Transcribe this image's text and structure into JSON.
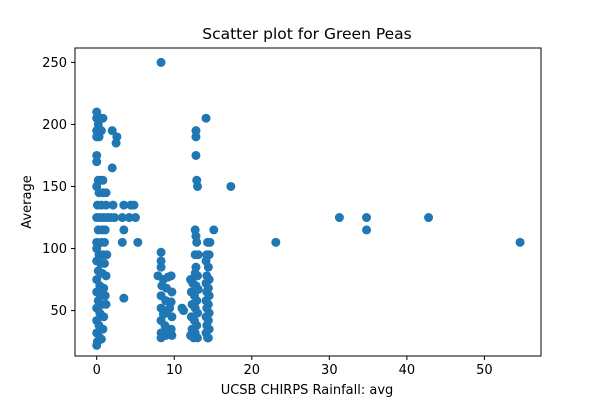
{
  "chart_data": {
    "type": "scatter",
    "title": "Scatter plot for Green Peas",
    "xlabel": "UCSB CHIRPS Rainfall: avg",
    "ylabel": "Average",
    "xlim": [
      -2.8,
      57.3
    ],
    "ylim": [
      13.4,
      261.6
    ],
    "xticks": [
      0,
      10,
      20,
      30,
      40,
      50
    ],
    "yticks": [
      50,
      100,
      150,
      200,
      250
    ],
    "grid": false,
    "marker_color": "#1f77b4",
    "series": [
      {
        "points": [
          [
            0,
            210
          ],
          [
            0,
            205
          ],
          [
            0.2,
            200
          ],
          [
            0,
            195
          ],
          [
            0.3,
            190
          ],
          [
            0,
            190
          ],
          [
            0.5,
            205
          ],
          [
            0.8,
            205
          ],
          [
            0.6,
            195
          ],
          [
            0,
            175
          ],
          [
            0,
            170
          ],
          [
            0.2,
            155
          ],
          [
            0.5,
            155
          ],
          [
            0.8,
            155
          ],
          [
            0,
            150
          ],
          [
            0.3,
            145
          ],
          [
            0.8,
            145
          ],
          [
            1.2,
            145
          ],
          [
            0.1,
            135
          ],
          [
            0.6,
            135
          ],
          [
            1.2,
            135
          ],
          [
            0,
            125
          ],
          [
            0.4,
            125
          ],
          [
            0.9,
            125
          ],
          [
            1.4,
            125
          ],
          [
            1.8,
            125
          ],
          [
            2.3,
            125
          ],
          [
            0.2,
            115
          ],
          [
            0.7,
            115
          ],
          [
            1.1,
            115
          ],
          [
            0,
            105
          ],
          [
            0.6,
            105
          ],
          [
            1.0,
            105
          ],
          [
            0,
            100
          ],
          [
            0.3,
            95
          ],
          [
            0.8,
            95
          ],
          [
            1.3,
            95
          ],
          [
            0,
            90
          ],
          [
            0.5,
            88
          ],
          [
            1.0,
            88
          ],
          [
            0.2,
            82
          ],
          [
            0.7,
            80
          ],
          [
            1.2,
            78
          ],
          [
            0,
            75
          ],
          [
            0.4,
            70
          ],
          [
            0.9,
            68
          ],
          [
            0,
            65
          ],
          [
            0.5,
            62
          ],
          [
            1.1,
            62
          ],
          [
            0.2,
            58
          ],
          [
            0.7,
            55
          ],
          [
            1.2,
            55
          ],
          [
            0,
            52
          ],
          [
            0.4,
            48
          ],
          [
            0.9,
            45
          ],
          [
            0,
            42
          ],
          [
            0.3,
            38
          ],
          [
            0.8,
            35
          ],
          [
            0,
            32
          ],
          [
            0.4,
            28
          ],
          [
            0.1,
            25
          ],
          [
            0,
            22
          ],
          [
            0.6,
            27
          ],
          [
            2.0,
            195
          ],
          [
            2.6,
            190
          ],
          [
            2.5,
            185
          ],
          [
            2.0,
            165
          ],
          [
            2.1,
            135
          ],
          [
            3.5,
            135
          ],
          [
            4.4,
            135
          ],
          [
            3.3,
            125
          ],
          [
            4.2,
            125
          ],
          [
            5.0,
            125
          ],
          [
            3.5,
            115
          ],
          [
            3.3,
            105
          ],
          [
            5.3,
            105
          ],
          [
            4.8,
            135
          ],
          [
            3.5,
            60
          ],
          [
            8.3,
            250
          ],
          [
            8.3,
            97
          ],
          [
            8.3,
            90
          ],
          [
            8.3,
            85
          ],
          [
            7.9,
            78
          ],
          [
            8.6,
            75
          ],
          [
            9.2,
            77
          ],
          [
            9.6,
            78
          ],
          [
            8.4,
            70
          ],
          [
            9.0,
            68
          ],
          [
            9.7,
            65
          ],
          [
            8.3,
            62
          ],
          [
            8.9,
            58
          ],
          [
            9.6,
            57
          ],
          [
            8.3,
            52
          ],
          [
            8.9,
            48
          ],
          [
            9.7,
            45
          ],
          [
            8.3,
            42
          ],
          [
            8.8,
            38
          ],
          [
            9.6,
            35
          ],
          [
            8.3,
            32
          ],
          [
            8.9,
            30
          ],
          [
            8.3,
            28
          ],
          [
            9.7,
            30
          ],
          [
            9.2,
            33
          ],
          [
            8.6,
            47
          ],
          [
            9.4,
            52
          ],
          [
            11.0,
            52
          ],
          [
            11.2,
            50
          ],
          [
            12.1,
            75
          ],
          [
            12.4,
            72
          ],
          [
            12.8,
            70
          ],
          [
            13.1,
            67
          ],
          [
            12.2,
            65
          ],
          [
            12.6,
            62
          ],
          [
            12.9,
            58
          ],
          [
            12.3,
            55
          ],
          [
            12.7,
            52
          ],
          [
            13.0,
            48
          ],
          [
            12.2,
            45
          ],
          [
            12.6,
            42
          ],
          [
            12.9,
            38
          ],
          [
            12.3,
            35
          ],
          [
            12.7,
            32
          ],
          [
            12.1,
            30
          ],
          [
            12.5,
            28
          ],
          [
            13.0,
            28
          ],
          [
            12.8,
            195
          ],
          [
            12.8,
            190
          ],
          [
            12.8,
            175
          ],
          [
            12.9,
            155
          ],
          [
            13.0,
            150
          ],
          [
            12.7,
            115
          ],
          [
            12.8,
            110
          ],
          [
            12.9,
            105
          ],
          [
            12.7,
            95
          ],
          [
            13.1,
            95
          ],
          [
            12.8,
            85
          ],
          [
            12.7,
            80
          ],
          [
            13.0,
            78
          ],
          [
            14.1,
            205
          ],
          [
            14.3,
            105
          ],
          [
            14.6,
            105
          ],
          [
            14.2,
            95
          ],
          [
            14.5,
            95
          ],
          [
            14.1,
            90
          ],
          [
            14.4,
            85
          ],
          [
            14.2,
            78
          ],
          [
            14.5,
            75
          ],
          [
            14.1,
            72
          ],
          [
            14.4,
            68
          ],
          [
            14.2,
            65
          ],
          [
            14.5,
            62
          ],
          [
            14.1,
            58
          ],
          [
            14.4,
            55
          ],
          [
            14.2,
            52
          ],
          [
            14.5,
            48
          ],
          [
            14.1,
            45
          ],
          [
            14.4,
            42
          ],
          [
            14.2,
            38
          ],
          [
            14.5,
            35
          ],
          [
            14.1,
            32
          ],
          [
            14.4,
            28
          ],
          [
            14.3,
            28
          ],
          [
            15.1,
            115
          ],
          [
            17.3,
            150
          ],
          [
            23.1,
            105
          ],
          [
            31.3,
            125
          ],
          [
            34.8,
            125
          ],
          [
            34.8,
            115
          ],
          [
            42.8,
            125
          ],
          [
            54.6,
            105
          ]
        ]
      }
    ]
  }
}
